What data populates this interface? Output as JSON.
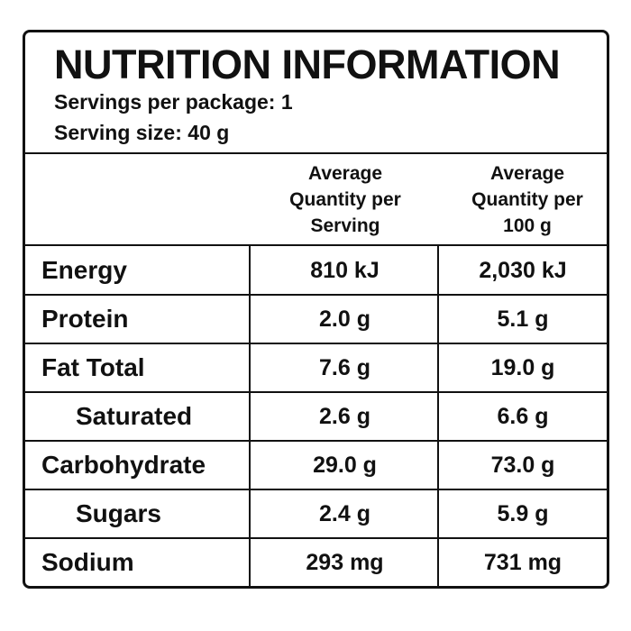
{
  "header": {
    "title": "NUTRITION INFORMATION",
    "servings_per_package": "Servings per package: 1",
    "serving_size": "Serving size: 40 g"
  },
  "table": {
    "columns": [
      "Average Quantity per Serving",
      "Average Quantity per 100 g"
    ],
    "rows": [
      [
        "Energy",
        "810 kJ",
        "2,030 kJ"
      ],
      [
        "Protein",
        "2.0 g",
        "5.1 g"
      ],
      [
        "Fat Total",
        "7.6 g",
        "19.0 g"
      ],
      [
        "Saturated",
        "2.6 g",
        "6.6 g"
      ],
      [
        "Carbohydrate",
        "29.0 g",
        "73.0 g"
      ],
      [
        "Sugars",
        "2.4 g",
        "5.9 g"
      ],
      [
        "Sodium",
        "293 mg",
        "731 mg"
      ]
    ]
  }
}
